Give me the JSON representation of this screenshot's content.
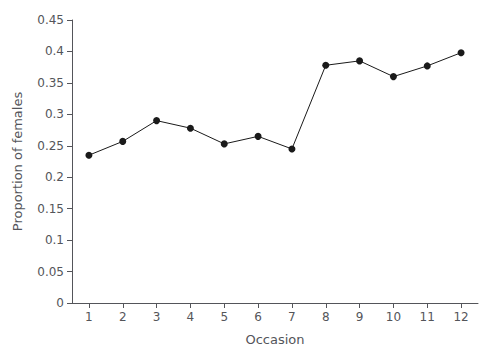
{
  "chart_data": {
    "type": "line",
    "xlabel": "Occasion",
    "ylabel": "Proportion of females",
    "x": [
      1,
      2,
      3,
      4,
      5,
      6,
      7,
      8,
      9,
      10,
      11,
      12
    ],
    "values": [
      0.235,
      0.257,
      0.29,
      0.278,
      0.253,
      0.265,
      0.245,
      0.378,
      0.385,
      0.36,
      0.377,
      0.398
    ],
    "xlim": [
      0.5,
      12.5
    ],
    "ylim": [
      0,
      0.45
    ],
    "xticks": [
      1,
      2,
      3,
      4,
      5,
      6,
      7,
      8,
      9,
      10,
      11,
      12
    ],
    "yticks": [
      0,
      0.05,
      0.1,
      0.15,
      0.2,
      0.25,
      0.3,
      0.35,
      0.4,
      0.45
    ],
    "color": "#1a1a1a",
    "marker": "circle",
    "grid": false
  }
}
